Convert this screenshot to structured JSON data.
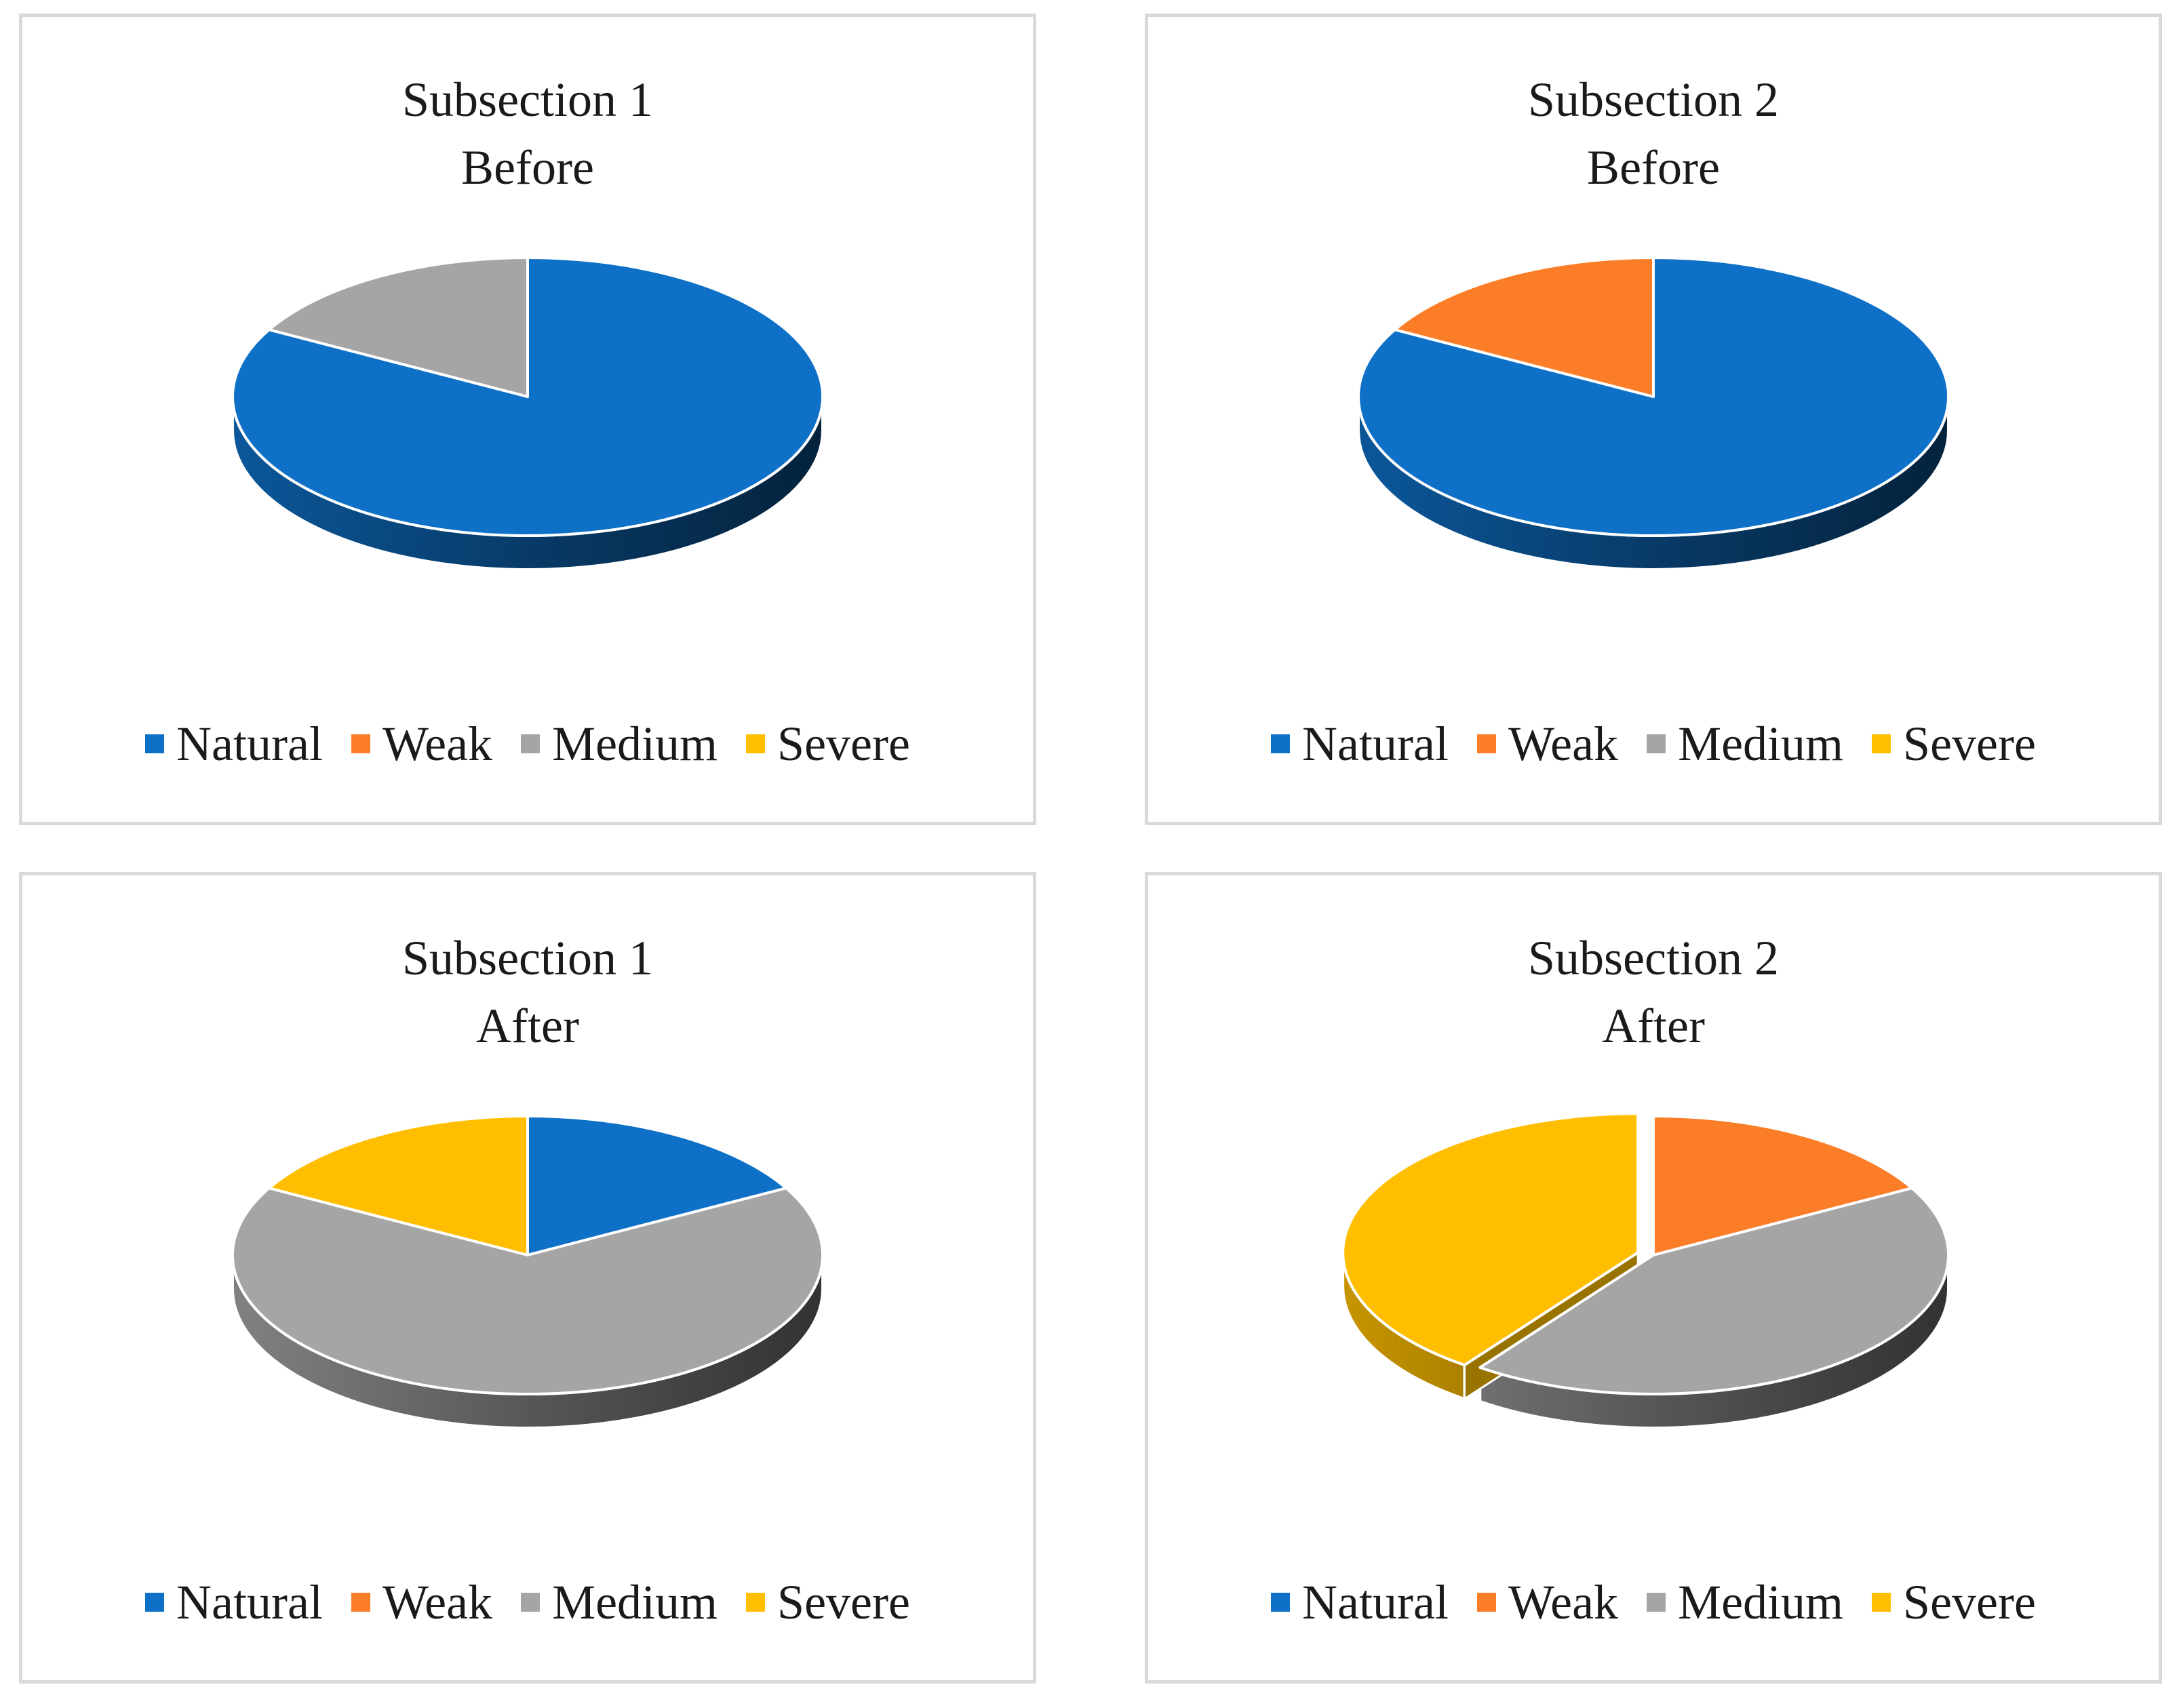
{
  "legend": [
    {
      "name": "Natural",
      "color": "#0e70c6"
    },
    {
      "name": "Weak",
      "color": "#fb7d27"
    },
    {
      "name": "Medium",
      "color": "#a5a5a5"
    },
    {
      "name": "Severe",
      "color": "#ffbf00"
    }
  ],
  "chart_data": [
    {
      "type": "pie",
      "title": [
        "Subsection 1",
        "Before"
      ],
      "categories": [
        "Natural",
        "Weak",
        "Medium",
        "Severe"
      ],
      "values": [
        83,
        0,
        17,
        0
      ],
      "colors": [
        "#0e70c6",
        "#fb7d27",
        "#a5a5a5",
        "#ffbf00"
      ],
      "legend_position": "bottom"
    },
    {
      "type": "pie",
      "title": [
        "Subsection 2",
        "Before"
      ],
      "categories": [
        "Natural",
        "Weak",
        "Medium",
        "Severe"
      ],
      "values": [
        83,
        17,
        0,
        0
      ],
      "colors": [
        "#0e70c6",
        "#fb7d27",
        "#a5a5a5",
        "#ffbf00"
      ],
      "legend_position": "bottom"
    },
    {
      "type": "pie",
      "title": [
        "Subsection 1",
        "After"
      ],
      "categories": [
        "Natural",
        "Weak",
        "Medium",
        "Severe"
      ],
      "values": [
        17,
        0,
        66,
        17
      ],
      "colors": [
        "#0e70c6",
        "#fb7d27",
        "#a5a5a5",
        "#ffbf00"
      ],
      "legend_position": "bottom"
    },
    {
      "type": "pie",
      "title": [
        "Subsection 2",
        "After"
      ],
      "categories": [
        "Natural",
        "Weak",
        "Medium",
        "Severe"
      ],
      "values": [
        0,
        17,
        43,
        40
      ],
      "colors": [
        "#0e70c6",
        "#fb7d27",
        "#a5a5a5",
        "#ffbf00"
      ],
      "exploded": [
        "Severe"
      ],
      "legend_position": "bottom"
    }
  ]
}
